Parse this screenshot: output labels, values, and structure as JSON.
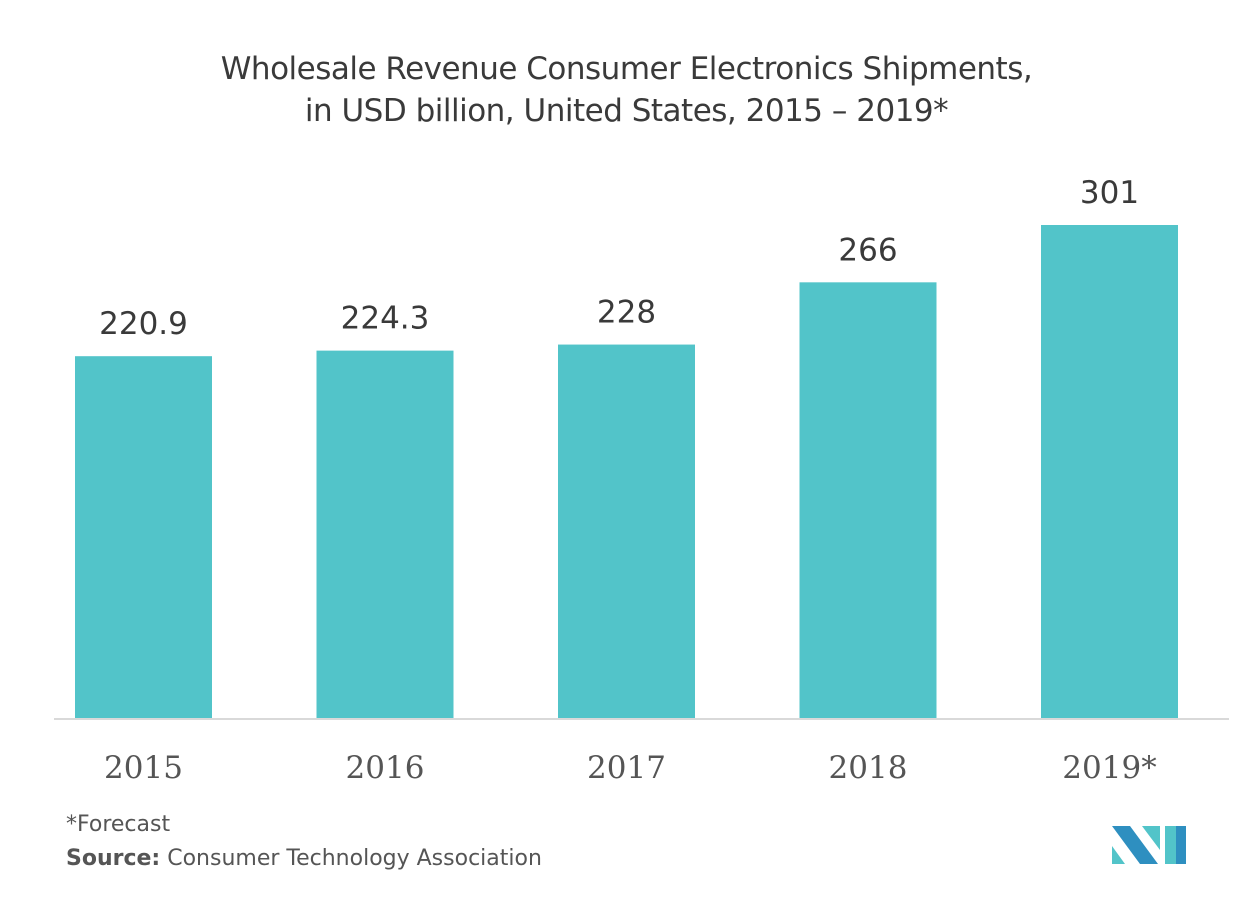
{
  "chart_data": {
    "type": "bar",
    "title": "Wholesale Revenue Consumer Electronics Shipments,",
    "subtitle": "in USD billion, United States, 2015 – 2019*",
    "categories": [
      "2015",
      "2016",
      "2017",
      "2018",
      "2019*"
    ],
    "values": [
      220.9,
      224.3,
      228,
      266,
      301
    ],
    "value_labels": [
      "220.9",
      "224.3",
      "228",
      "266",
      "301"
    ],
    "xlabel": "",
    "ylabel": "",
    "ylim": [
      0,
      301
    ],
    "grid": false,
    "legend": "none",
    "bar_color": "#52c4c9"
  },
  "footnote": "*Forecast",
  "source_label": "Source:",
  "source_text": " Consumer Technology Association",
  "logo": {
    "name": "mordor-intelligence-logo",
    "colors": [
      "#2e8fc0",
      "#52c4c9"
    ]
  }
}
